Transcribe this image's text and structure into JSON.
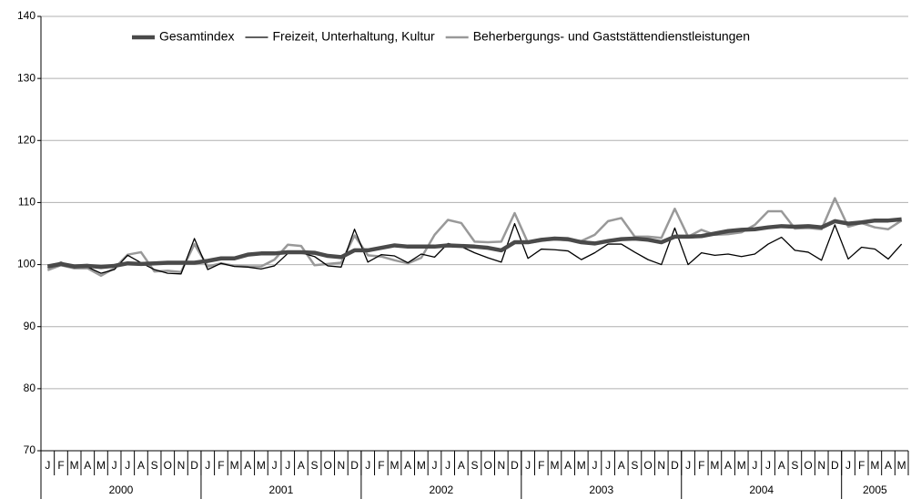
{
  "chart_data": {
    "type": "line",
    "categories": [
      "J",
      "F",
      "M",
      "A",
      "M",
      "J",
      "J",
      "A",
      "S",
      "O",
      "N",
      "D",
      "J",
      "F",
      "M",
      "A",
      "M",
      "J",
      "J",
      "A",
      "S",
      "O",
      "N",
      "D",
      "J",
      "F",
      "M",
      "A",
      "M",
      "J",
      "J",
      "A",
      "S",
      "O",
      "N",
      "D",
      "J",
      "F",
      "M",
      "A",
      "M",
      "J",
      "J",
      "A",
      "S",
      "O",
      "N",
      "D",
      "J",
      "F",
      "M",
      "A",
      "M",
      "J",
      "J",
      "A",
      "S",
      "O",
      "N",
      "D",
      "J",
      "F",
      "M",
      "A",
      "M"
    ],
    "years": [
      "2000",
      "2001",
      "2002",
      "2003",
      "2004",
      "2005"
    ],
    "series": [
      {
        "name": "Gesamtindex",
        "color": "#4a4a4a",
        "values": [
          99.7,
          100.1,
          99.7,
          99.8,
          99.6,
          99.8,
          100.2,
          100.1,
          100.2,
          100.3,
          100.3,
          100.3,
          100.6,
          101.0,
          101.0,
          101.6,
          101.8,
          101.8,
          102.0,
          102.0,
          101.9,
          101.4,
          101.2,
          102.3,
          102.3,
          102.7,
          103.1,
          102.9,
          102.9,
          102.9,
          103.1,
          103.0,
          102.9,
          102.7,
          102.3,
          103.6,
          103.6,
          104.0,
          104.2,
          104.1,
          103.6,
          103.4,
          103.8,
          104.1,
          104.2,
          104.0,
          103.6,
          104.5,
          104.5,
          104.6,
          105.0,
          105.4,
          105.6,
          105.7,
          106.0,
          106.2,
          106.1,
          106.2,
          106.0,
          107.0,
          106.6,
          106.8,
          107.1,
          107.1,
          107.3
        ]
      },
      {
        "name": "Freizeit, Unterhaltung, Kultur",
        "color": "#000000",
        "values": [
          99.5,
          100.4,
          99.5,
          99.6,
          98.6,
          99.2,
          101.5,
          100.3,
          99.2,
          98.6,
          98.5,
          104.2,
          99.2,
          100.2,
          99.7,
          99.6,
          99.3,
          99.8,
          101.8,
          101.9,
          101.3,
          99.8,
          99.6,
          105.7,
          100.4,
          101.6,
          101.4,
          100.3,
          101.7,
          101.2,
          103.4,
          102.9,
          101.9,
          101.1,
          100.4,
          106.6,
          101.0,
          102.5,
          102.4,
          102.2,
          100.8,
          101.9,
          103.3,
          103.3,
          102.0,
          100.8,
          100.0,
          105.9,
          100.0,
          101.9,
          101.5,
          101.7,
          101.3,
          101.7,
          103.3,
          104.4,
          102.3,
          102.0,
          100.7,
          106.4,
          100.9,
          102.8,
          102.5,
          100.9,
          103.3
        ]
      },
      {
        "name": "Beherbergungs- und Gaststättendienstleistungen",
        "color": "#999999",
        "values": [
          99.1,
          99.9,
          99.4,
          99.4,
          98.2,
          99.4,
          101.6,
          102.0,
          98.9,
          99.0,
          98.8,
          103.3,
          99.7,
          100.2,
          99.8,
          99.7,
          99.7,
          100.8,
          103.2,
          103.0,
          99.9,
          100.1,
          100.3,
          104.7,
          101.5,
          101.3,
          100.7,
          100.2,
          101.1,
          104.8,
          107.2,
          106.7,
          103.7,
          103.6,
          103.7,
          108.3,
          103.5,
          103.8,
          104.1,
          103.9,
          103.8,
          104.8,
          107.0,
          107.5,
          104.5,
          104.5,
          104.3,
          109.0,
          104.5,
          105.6,
          104.8,
          104.9,
          105.2,
          106.4,
          108.6,
          108.6,
          105.8,
          105.9,
          105.7,
          110.7,
          106.1,
          106.7,
          106.0,
          105.7,
          107.1
        ]
      }
    ],
    "ylim": [
      70,
      140
    ],
    "yticks": [
      70,
      80,
      90,
      100,
      110,
      120,
      130,
      140
    ],
    "grid": true
  }
}
